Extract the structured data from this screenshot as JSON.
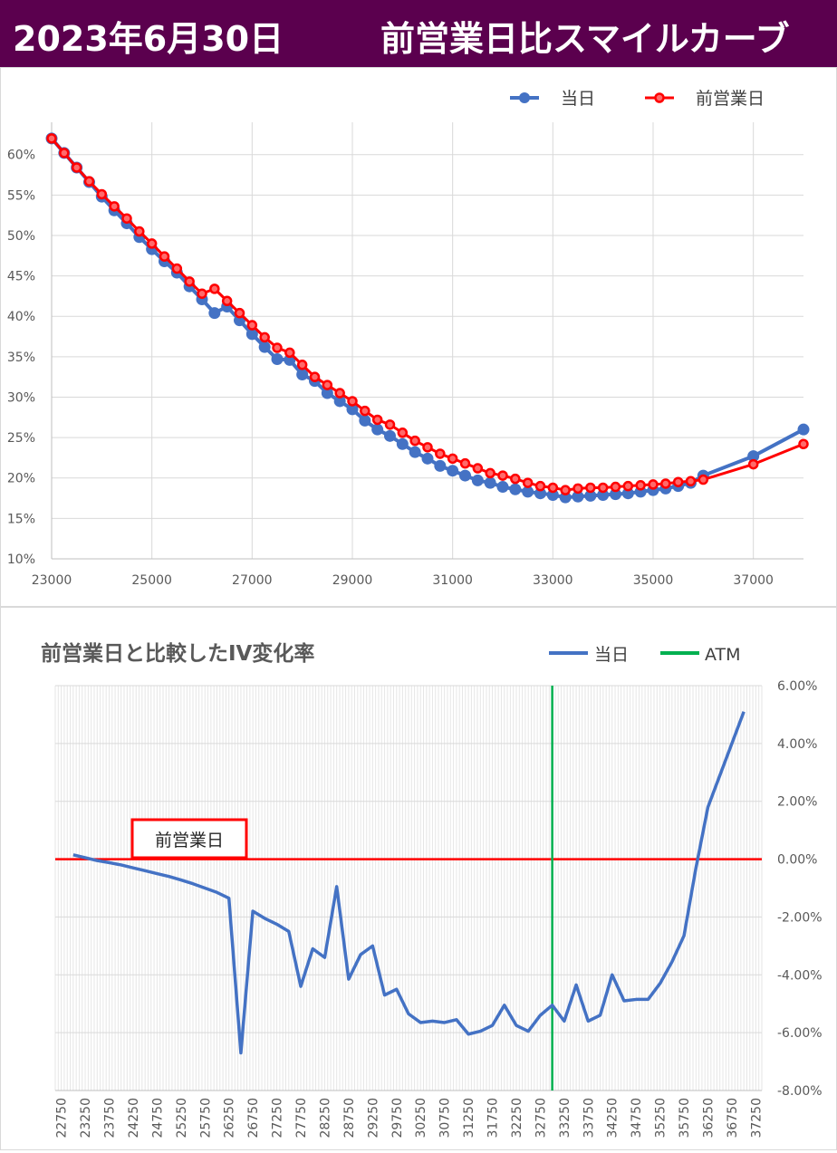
{
  "header": {
    "date": "2023年6月30日",
    "title": "前営業日比スマイルカーブ",
    "bg_color": "#5b004e"
  },
  "chart_data": [
    {
      "type": "line",
      "title": "",
      "legend": {
        "placement": "top-right",
        "entries": [
          "当日",
          "前営業日"
        ]
      },
      "x_ticks": [
        23000,
        25000,
        27000,
        29000,
        31000,
        33000,
        35000,
        37000
      ],
      "y_ticks": [
        "10%",
        "15%",
        "20%",
        "25%",
        "30%",
        "35%",
        "40%",
        "45%",
        "50%",
        "55%",
        "60%"
      ],
      "xlim": [
        23000,
        38000
      ],
      "ylim": [
        0.1,
        0.64
      ],
      "grid": true,
      "strikes": [
        23000,
        23250,
        23500,
        23750,
        24000,
        24250,
        24500,
        24750,
        25000,
        25250,
        25500,
        25750,
        26000,
        26250,
        26500,
        26750,
        27000,
        27250,
        27500,
        27750,
        28000,
        28250,
        28500,
        28750,
        29000,
        29250,
        29500,
        29750,
        30000,
        30250,
        30500,
        30750,
        31000,
        31250,
        31500,
        31750,
        32000,
        32250,
        32500,
        32750,
        33000,
        33250,
        33500,
        33750,
        34000,
        34250,
        34500,
        34750,
        35000,
        35250,
        35500,
        35750,
        36000,
        37000,
        38000
      ],
      "series": [
        {
          "name": "当日",
          "color": "#4472c4",
          "values": [
            0.62,
            0.602,
            0.584,
            0.566,
            0.548,
            0.531,
            0.515,
            0.498,
            0.483,
            0.468,
            0.454,
            0.437,
            0.421,
            0.404,
            0.412,
            0.395,
            0.378,
            0.362,
            0.347,
            0.346,
            0.328,
            0.32,
            0.305,
            0.295,
            0.285,
            0.271,
            0.26,
            0.252,
            0.242,
            0.232,
            0.224,
            0.215,
            0.209,
            0.203,
            0.197,
            0.194,
            0.189,
            0.186,
            0.183,
            0.181,
            0.179,
            0.176,
            0.177,
            0.178,
            0.179,
            0.18,
            0.181,
            0.183,
            0.185,
            0.187,
            0.19,
            0.194,
            0.203,
            0.227,
            0.26
          ]
        },
        {
          "name": "前営業日",
          "color": "#ff0000",
          "marker_fill": "#ff6a6a",
          "values": [
            0.62,
            0.602,
            0.584,
            0.567,
            0.551,
            0.536,
            0.521,
            0.505,
            0.49,
            0.474,
            0.459,
            0.443,
            0.428,
            0.434,
            0.419,
            0.404,
            0.389,
            0.374,
            0.361,
            0.355,
            0.34,
            0.325,
            0.315,
            0.305,
            0.295,
            0.283,
            0.272,
            0.266,
            0.256,
            0.246,
            0.238,
            0.23,
            0.224,
            0.218,
            0.212,
            0.206,
            0.203,
            0.199,
            0.194,
            0.19,
            0.188,
            0.185,
            0.187,
            0.188,
            0.188,
            0.189,
            0.19,
            0.191,
            0.192,
            0.193,
            0.195,
            0.196,
            0.198,
            0.217,
            0.242
          ]
        }
      ]
    },
    {
      "type": "line",
      "title": "前営業日と比較したIV変化率",
      "legend": {
        "placement": "top-right",
        "entries": [
          "当日",
          "ATM"
        ]
      },
      "x_categories": [
        "22750",
        "23000",
        "23250",
        "23500",
        "23750",
        "24000",
        "24250",
        "24500",
        "24750",
        "25000",
        "25250",
        "25500",
        "25750",
        "26000",
        "26250",
        "26500",
        "26750",
        "27000",
        "27250",
        "27500",
        "27750",
        "28000",
        "28250",
        "28500",
        "28750",
        "29000",
        "29250",
        "29500",
        "29750",
        "30000",
        "30250",
        "30500",
        "30750",
        "31000",
        "31250",
        "31500",
        "31750",
        "32000",
        "32250",
        "32500",
        "32750",
        "33000",
        "33250",
        "33500",
        "33750",
        "34000",
        "34250",
        "34500",
        "34750",
        "35000",
        "35250",
        "35500",
        "35750",
        "36000",
        "36250",
        "36500",
        "36750",
        "37000",
        "37250"
      ],
      "x_tick_labels": [
        "22750",
        "23250",
        "23750",
        "24250",
        "24750",
        "25250",
        "25750",
        "26250",
        "26750",
        "27250",
        "27750",
        "28250",
        "28750",
        "29250",
        "29750",
        "30250",
        "30750",
        "31250",
        "31750",
        "32250",
        "32750",
        "33250",
        "33750",
        "34250",
        "34750",
        "35250",
        "35750",
        "36250",
        "36750",
        "37250"
      ],
      "y_ticks": [
        "6.00%",
        "4.00%",
        "2.00%",
        "0.00%",
        "-2.00%",
        "-4.00%",
        "-6.00%",
        "-8.00%"
      ],
      "ylim": [
        -0.08,
        0.06
      ],
      "y_axis_side": "right",
      "grid": true,
      "atm_strike": "33000",
      "atm_color": "#00b050",
      "baseline": {
        "value": 0,
        "label": "前営業日",
        "color": "#ff0000"
      },
      "series": [
        {
          "name": "当日",
          "color": "#4472c4",
          "points": [
            [
              "23000",
              0.0015
            ],
            [
              "23250",
              0.0005
            ],
            [
              "23500",
              -0.0005
            ],
            [
              "23750",
              -0.0012
            ],
            [
              "24000",
              -0.002
            ],
            [
              "24250",
              -0.003
            ],
            [
              "24500",
              -0.004
            ],
            [
              "24750",
              -0.005
            ],
            [
              "25000",
              -0.006
            ],
            [
              "25250",
              -0.0072
            ],
            [
              "25500",
              -0.0085
            ],
            [
              "25750",
              -0.01
            ],
            [
              "26000",
              -0.0115
            ],
            [
              "26250",
              -0.0135
            ],
            [
              "26500",
              -0.067
            ],
            [
              "26750",
              -0.018
            ],
            [
              "27000",
              -0.0205
            ],
            [
              "27250",
              -0.0225
            ],
            [
              "27500",
              -0.025
            ],
            [
              "27750",
              -0.044
            ],
            [
              "28000",
              -0.031
            ],
            [
              "28250",
              -0.034
            ],
            [
              "28500",
              -0.0095
            ],
            [
              "28750",
              -0.0415
            ],
            [
              "29000",
              -0.033
            ],
            [
              "29250",
              -0.03
            ],
            [
              "29500",
              -0.047
            ],
            [
              "29750",
              -0.045
            ],
            [
              "30000",
              -0.0535
            ],
            [
              "30250",
              -0.0565
            ],
            [
              "30500",
              -0.056
            ],
            [
              "30750",
              -0.0565
            ],
            [
              "31000",
              -0.0555
            ],
            [
              "31250",
              -0.0605
            ],
            [
              "31500",
              -0.0595
            ],
            [
              "31750",
              -0.0575
            ],
            [
              "32000",
              -0.0505
            ],
            [
              "32250",
              -0.0575
            ],
            [
              "32500",
              -0.0595
            ],
            [
              "32750",
              -0.054
            ],
            [
              "33000",
              -0.0505
            ],
            [
              "33250",
              -0.056
            ],
            [
              "33500",
              -0.0435
            ],
            [
              "33750",
              -0.056
            ],
            [
              "34000",
              -0.054
            ],
            [
              "34250",
              -0.04
            ],
            [
              "34500",
              -0.049
            ],
            [
              "34750",
              -0.0485
            ],
            [
              "35000",
              -0.0485
            ],
            [
              "35250",
              -0.043
            ],
            [
              "35500",
              -0.0355
            ],
            [
              "35750",
              -0.0265
            ],
            [
              "36000",
              -0.003
            ],
            [
              "36250",
              0.018
            ],
            [
              "37000",
              0.051
            ]
          ]
        }
      ]
    }
  ]
}
